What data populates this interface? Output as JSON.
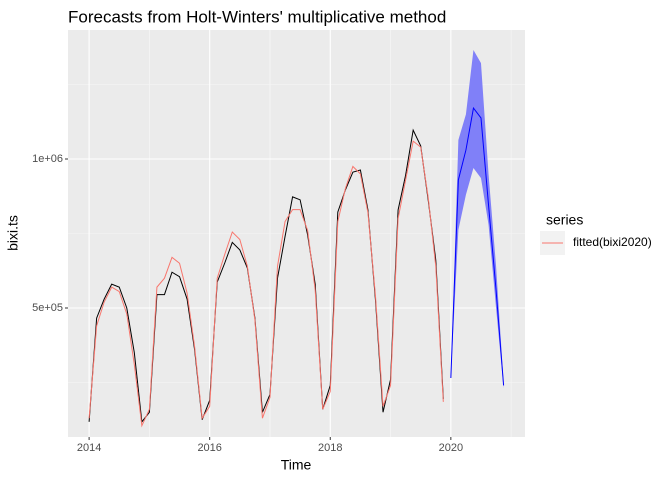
{
  "chart_data": {
    "type": "line",
    "title": "Forecasts from Holt-Winters' multiplicative method",
    "x_label": "Time",
    "y_label": "bixi.ts",
    "legend_title": "series",
    "x": [
      2014,
      2014.125,
      2014.25,
      2014.375,
      2014.5,
      2014.625,
      2014.75,
      2014.875,
      2015,
      2015.125,
      2015.25,
      2015.375,
      2015.5,
      2015.625,
      2015.75,
      2015.875,
      2016,
      2016.125,
      2016.25,
      2016.375,
      2016.5,
      2016.625,
      2016.75,
      2016.875,
      2017,
      2017.125,
      2017.25,
      2017.375,
      2017.5,
      2017.625,
      2017.75,
      2017.875,
      2018,
      2018.125,
      2018.25,
      2018.375,
      2018.5,
      2018.625,
      2018.75,
      2018.875,
      2019,
      2019.125,
      2019.25,
      2019.375,
      2019.5,
      2019.625,
      2019.75,
      2019.875,
      2020,
      2020.125,
      2020.25,
      2020.375,
      2020.5,
      2020.625,
      2020.75,
      2020.875
    ],
    "series": [
      {
        "color": "#000000",
        "values": [
          118000,
          466000,
          530000,
          580000,
          570000,
          500000,
          350000,
          118000,
          150000,
          545000,
          545000,
          620000,
          605000,
          530000,
          360000,
          125000,
          190000,
          587000,
          651000,
          720000,
          695000,
          634000,
          466000,
          150000,
          210000,
          600000,
          740000,
          873000,
          863000,
          745000,
          580000,
          160000,
          240000,
          822000,
          896000,
          956000,
          963000,
          829000,
          527000,
          150000,
          260000,
          829000,
          946000,
          1097000,
          1044000,
          862000,
          661000,
          195000,
          null,
          null,
          null,
          null,
          null,
          null,
          null,
          null
        ]
      },
      {
        "name": "fitted(bixi2020)",
        "color": "#f8766d",
        "values": [
          130000,
          440000,
          520000,
          570000,
          555000,
          480000,
          310000,
          105000,
          160000,
          570000,
          600000,
          670000,
          650000,
          550000,
          370000,
          130000,
          170000,
          600000,
          680000,
          755000,
          730000,
          640000,
          460000,
          130000,
          200000,
          640000,
          790000,
          830000,
          830000,
          760000,
          560000,
          160000,
          220000,
          790000,
          900000,
          975000,
          950000,
          820000,
          540000,
          170000,
          240000,
          800000,
          930000,
          1060000,
          1040000,
          870000,
          640000,
          185000,
          null,
          null,
          null,
          null,
          null,
          null,
          null,
          null
        ]
      },
      {
        "color": "#0000ff",
        "band_color": "#8080f8",
        "values": [
          null,
          null,
          null,
          null,
          null,
          null,
          null,
          null,
          null,
          null,
          null,
          null,
          null,
          null,
          null,
          null,
          null,
          null,
          null,
          null,
          null,
          null,
          null,
          null,
          null,
          null,
          null,
          null,
          null,
          null,
          null,
          null,
          null,
          null,
          null,
          null,
          null,
          null,
          null,
          null,
          null,
          null,
          null,
          null,
          null,
          null,
          null,
          null,
          265000,
          930000,
          1030000,
          1171000,
          1138000,
          846000,
          560000,
          240000
        ],
        "lower": [
          null,
          null,
          null,
          null,
          null,
          null,
          null,
          null,
          null,
          null,
          null,
          null,
          null,
          null,
          null,
          null,
          null,
          null,
          null,
          null,
          null,
          null,
          null,
          null,
          null,
          null,
          null,
          null,
          null,
          null,
          null,
          null,
          null,
          null,
          null,
          null,
          null,
          null,
          null,
          null,
          null,
          null,
          null,
          null,
          null,
          null,
          null,
          null,
          265000,
          762000,
          880000,
          970000,
          936000,
          780000,
          500000,
          230000
        ],
        "upper": [
          null,
          null,
          null,
          null,
          null,
          null,
          null,
          null,
          null,
          null,
          null,
          null,
          null,
          null,
          null,
          null,
          null,
          null,
          null,
          null,
          null,
          null,
          null,
          null,
          null,
          null,
          null,
          null,
          null,
          null,
          null,
          null,
          null,
          null,
          null,
          null,
          null,
          null,
          null,
          null,
          null,
          null,
          null,
          null,
          null,
          null,
          null,
          null,
          265000,
          1064000,
          1150000,
          1366000,
          1322000,
          950000,
          640000,
          250000
        ]
      }
    ],
    "xlim": [
      2013.65,
      2021.23
    ],
    "ylim": [
      67000,
      1433000
    ],
    "xticks": [
      2014,
      2016,
      2018,
      2020
    ],
    "yticks": [
      {
        "value": 500000,
        "label": "5e+05"
      },
      {
        "value": 1000000,
        "label": "1e+06"
      }
    ],
    "grid": true
  }
}
